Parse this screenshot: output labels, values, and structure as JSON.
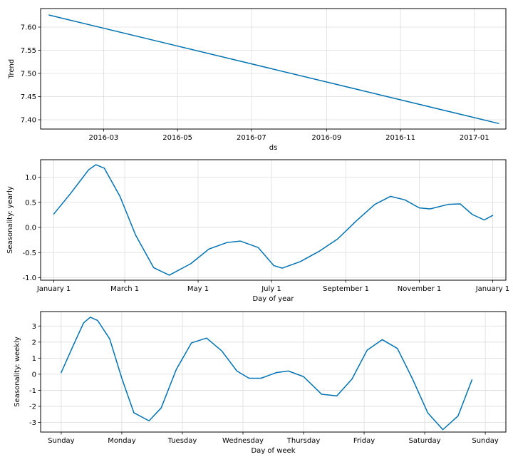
{
  "chart_data": [
    {
      "type": "line",
      "xlabel": "ds",
      "ylabel": "Trend",
      "x_ticks": [
        "2016-03",
        "2016-05",
        "2016-07",
        "2016-09",
        "2016-11",
        "2017-01"
      ],
      "y_ticks": [
        "7.40",
        "7.45",
        "7.50",
        "7.55",
        "7.60"
      ],
      "ylim": [
        7.38,
        7.64
      ],
      "grid": true,
      "series": [
        {
          "color": "#0072b2",
          "points": [
            {
              "x": "2016-01-16",
              "y": 7.626
            },
            {
              "x": "2017-01-21",
              "y": 7.392
            }
          ]
        }
      ]
    },
    {
      "type": "line",
      "xlabel": "Day of year",
      "ylabel": "Seasonality: yearly",
      "x_ticks": [
        "January 1",
        "March 1",
        "May 1",
        "July 1",
        "September 1",
        "November 1",
        "January 1"
      ],
      "y_ticks": [
        "-1.0",
        "-0.5",
        "0.0",
        "0.5",
        "1.0"
      ],
      "ylim": [
        -1.05,
        1.35
      ],
      "grid": true,
      "series": [
        {
          "color": "#0072b2",
          "points": [
            {
              "x": "2017-01-01",
              "y": 0.27
            },
            {
              "x": "2017-01-15",
              "y": 0.68
            },
            {
              "x": "2017-01-30",
              "y": 1.15
            },
            {
              "x": "2017-02-05",
              "y": 1.25
            },
            {
              "x": "2017-02-12",
              "y": 1.18
            },
            {
              "x": "2017-02-25",
              "y": 0.62
            },
            {
              "x": "2017-03-10",
              "y": -0.15
            },
            {
              "x": "2017-03-25",
              "y": -0.8
            },
            {
              "x": "2017-04-07",
              "y": -0.95
            },
            {
              "x": "2017-04-25",
              "y": -0.72
            },
            {
              "x": "2017-05-10",
              "y": -0.43
            },
            {
              "x": "2017-05-25",
              "y": -0.3
            },
            {
              "x": "2017-06-05",
              "y": -0.27
            },
            {
              "x": "2017-06-20",
              "y": -0.4
            },
            {
              "x": "2017-07-03",
              "y": -0.76
            },
            {
              "x": "2017-07-10",
              "y": -0.81
            },
            {
              "x": "2017-07-25",
              "y": -0.68
            },
            {
              "x": "2017-08-10",
              "y": -0.47
            },
            {
              "x": "2017-08-25",
              "y": -0.23
            },
            {
              "x": "2017-09-10",
              "y": 0.14
            },
            {
              "x": "2017-09-25",
              "y": 0.46
            },
            {
              "x": "2017-10-08",
              "y": 0.62
            },
            {
              "x": "2017-10-20",
              "y": 0.55
            },
            {
              "x": "2017-11-01",
              "y": 0.39
            },
            {
              "x": "2017-11-10",
              "y": 0.37
            },
            {
              "x": "2017-11-25",
              "y": 0.46
            },
            {
              "x": "2017-12-05",
              "y": 0.47
            },
            {
              "x": "2017-12-15",
              "y": 0.26
            },
            {
              "x": "2017-12-25",
              "y": 0.15
            },
            {
              "x": "2018-01-01",
              "y": 0.24
            }
          ]
        }
      ]
    },
    {
      "type": "line",
      "xlabel": "Day of week",
      "ylabel": "Seasonality: weekly",
      "x_ticks": [
        "Sunday",
        "Monday",
        "Tuesday",
        "Wednesday",
        "Thursday",
        "Friday",
        "Saturday",
        "Sunday"
      ],
      "y_ticks": [
        "-3",
        "-2",
        "-1",
        "0",
        "1",
        "2",
        "3"
      ],
      "ylim": [
        -3.6,
        3.9
      ],
      "grid": true,
      "series": [
        {
          "color": "#0072b2",
          "points": [
            {
              "x": 0.0,
              "y": 0.1
            },
            {
              "x": 0.2,
              "y": 1.8
            },
            {
              "x": 0.37,
              "y": 3.2
            },
            {
              "x": 0.48,
              "y": 3.55
            },
            {
              "x": 0.6,
              "y": 3.35
            },
            {
              "x": 0.8,
              "y": 2.2
            },
            {
              "x": 1.0,
              "y": -0.25
            },
            {
              "x": 1.2,
              "y": -2.4
            },
            {
              "x": 1.45,
              "y": -2.9
            },
            {
              "x": 1.65,
              "y": -2.1
            },
            {
              "x": 1.9,
              "y": 0.3
            },
            {
              "x": 2.15,
              "y": 1.95
            },
            {
              "x": 2.4,
              "y": 2.25
            },
            {
              "x": 2.65,
              "y": 1.45
            },
            {
              "x": 2.9,
              "y": 0.2
            },
            {
              "x": 3.1,
              "y": -0.25
            },
            {
              "x": 3.3,
              "y": -0.25
            },
            {
              "x": 3.55,
              "y": 0.1
            },
            {
              "x": 3.75,
              "y": 0.2
            },
            {
              "x": 4.0,
              "y": -0.15
            },
            {
              "x": 4.3,
              "y": -1.25
            },
            {
              "x": 4.55,
              "y": -1.35
            },
            {
              "x": 4.8,
              "y": -0.3
            },
            {
              "x": 5.05,
              "y": 1.5
            },
            {
              "x": 5.3,
              "y": 2.15
            },
            {
              "x": 5.55,
              "y": 1.6
            },
            {
              "x": 5.8,
              "y": -0.3
            },
            {
              "x": 6.05,
              "y": -2.4
            },
            {
              "x": 6.3,
              "y": -3.45
            },
            {
              "x": 6.55,
              "y": -2.6
            },
            {
              "x": 6.78,
              "y": -0.35
            }
          ]
        }
      ]
    }
  ]
}
